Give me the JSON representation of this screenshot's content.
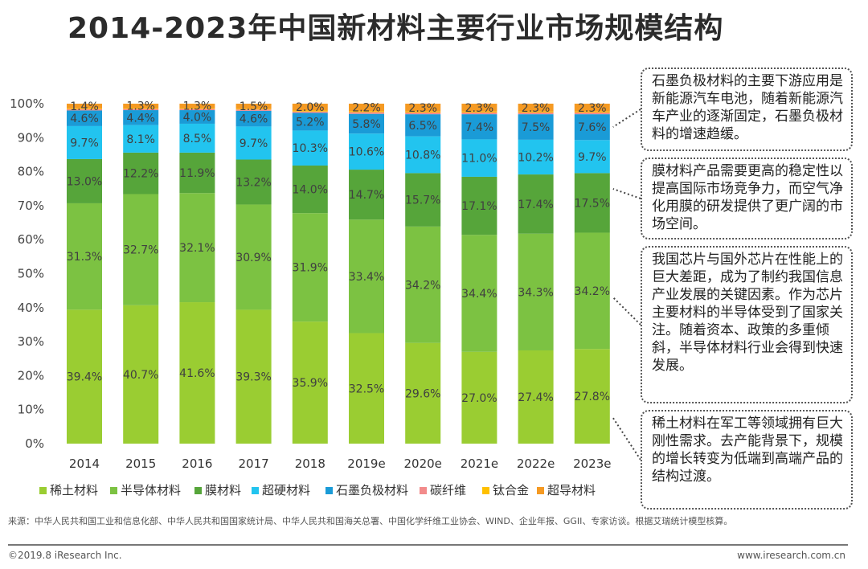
{
  "title": "2014-2023年中国新材料主要行业市场规模结构",
  "chart_data": {
    "type": "bar",
    "stacked": true,
    "title": "",
    "xlabel": "",
    "ylabel": "",
    "ylim": [
      0,
      100
    ],
    "y_tick_labels": [
      "0%",
      "10%",
      "20%",
      "30%",
      "40%",
      "50%",
      "60%",
      "70%",
      "80%",
      "90%",
      "100%"
    ],
    "grid": false,
    "legend_position": "bottom",
    "categories": [
      "2014",
      "2015",
      "2016",
      "2017",
      "2018",
      "2019e",
      "2020e",
      "2021e",
      "2022e",
      "2023e"
    ],
    "series": [
      {
        "name": "稀土材料",
        "color": "#9acd32",
        "values": [
          39.4,
          40.7,
          41.6,
          39.3,
          35.9,
          32.5,
          29.6,
          27.0,
          27.4,
          27.8
        ],
        "labels": [
          "39.4%",
          "40.7%",
          "41.6%",
          "39.3%",
          "35.9%",
          "32.5%",
          "29.6%",
          "27.0%",
          "27.4%",
          "27.8%"
        ]
      },
      {
        "name": "半导体材料",
        "color": "#7cc242",
        "values": [
          31.3,
          32.7,
          32.1,
          30.9,
          31.9,
          33.4,
          34.2,
          34.4,
          34.3,
          34.2
        ],
        "labels": [
          "31.3%",
          "32.7%",
          "32.1%",
          "30.9%",
          "31.9%",
          "33.4%",
          "34.2%",
          "34.4%",
          "34.3%",
          "34.2%"
        ]
      },
      {
        "name": "膜材料",
        "color": "#56a53a",
        "values": [
          13.0,
          12.2,
          11.9,
          13.2,
          14.0,
          14.7,
          15.7,
          17.1,
          17.4,
          17.5
        ],
        "labels": [
          "13.0%",
          "12.2%",
          "11.9%",
          "13.2%",
          "14.0%",
          "14.7%",
          "15.7%",
          "17.1%",
          "17.4%",
          "17.5%"
        ]
      },
      {
        "name": "超硬材料",
        "color": "#22c4ef",
        "values": [
          9.7,
          8.1,
          8.5,
          9.7,
          10.3,
          10.6,
          10.8,
          11.0,
          10.2,
          9.7
        ],
        "labels": [
          "9.7%",
          "8.1%",
          "8.5%",
          "9.7%",
          "10.3%",
          "10.6%",
          "10.8%",
          "11.0%",
          "10.2%",
          "9.7%"
        ]
      },
      {
        "name": "石墨负极材料",
        "color": "#1a9bd7",
        "values": [
          4.6,
          4.4,
          4.0,
          4.6,
          5.2,
          5.8,
          6.5,
          7.4,
          7.5,
          7.6
        ],
        "labels": [
          "4.6%",
          "4.4%",
          "4.0%",
          "4.6%",
          "5.2%",
          "5.8%",
          "6.5%",
          "7.4%",
          "7.5%",
          "7.6%"
        ]
      },
      {
        "name": "碳纤维",
        "color": "#f28b8b",
        "values": [
          0.4,
          0.4,
          0.4,
          0.4,
          0.4,
          0.5,
          0.5,
          0.5,
          0.5,
          0.5
        ],
        "labels": []
      },
      {
        "name": "钛合金",
        "color": "#ffc000",
        "values": [
          0.2,
          0.2,
          0.2,
          0.2,
          0.3,
          0.3,
          0.3,
          0.3,
          0.3,
          0.3
        ],
        "labels": []
      },
      {
        "name": "超导材料",
        "color": "#f59a23",
        "values": [
          1.4,
          1.3,
          1.3,
          1.5,
          2.0,
          2.2,
          2.3,
          2.3,
          2.3,
          2.3
        ],
        "labels": [
          "1.4%",
          "1.3%",
          "1.3%",
          "1.5%",
          "2.0%",
          "2.2%",
          "2.3%",
          "2.3%",
          "2.3%",
          "2.3%"
        ]
      }
    ]
  },
  "notes": [
    {
      "text": "石墨负极材料的主要下游应用是新能源汽车电池，随着新能源汽车产业的逐渐固定，石墨负极材料的增速趋缓。",
      "points_to": "石墨负极材料"
    },
    {
      "text": "膜材料产品需要更高的稳定性以提高国际市场竞争力，而空气净化用膜的研发提供了更广阔的市场空间。",
      "points_to": "膜材料"
    },
    {
      "text": "我国芯片与国外芯片在性能上的巨大差距，成为了制约我国信息产业发展的关键因素。作为芯片主要材料的半导体受到了国家关注。随着资本、政策的多重倾斜，半导体材料行业会得到快速发展。",
      "points_to": "半导体材料"
    },
    {
      "text": "稀土材料在军工等领域拥有巨大刚性需求。去产能背景下，规模的增长转变为低端到高端产品的结构过渡。",
      "points_to": "稀土材料"
    }
  ],
  "footer": {
    "source": "来源：中华人民共和国工业和信息化部、中华人民共和国国家统计局、中华人民共和国海关总署、中国化学纤维工业协会、WIND、企业年报、GGII、专家访谈。根据艾瑞统计模型核算。",
    "copyright": "©2019.8 iResearch Inc.",
    "website": "www.iresearch.com.cn"
  }
}
